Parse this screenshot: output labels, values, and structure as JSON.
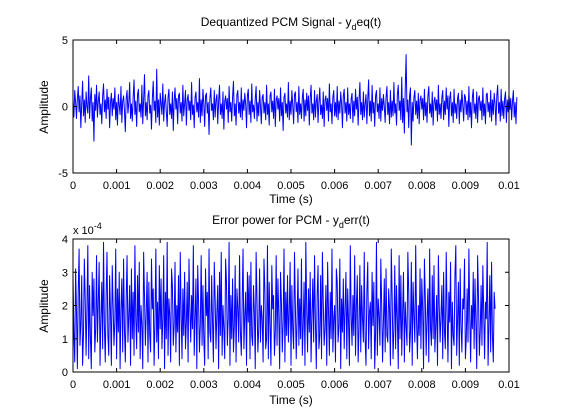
{
  "figure": {
    "background": "#ffffff",
    "axes_color": "#000000",
    "line_color": "#0000ff"
  },
  "chart_data": [
    {
      "type": "line",
      "title_prefix": "Dequantized PCM Signal - y",
      "title_subscript": "d",
      "title_suffix": "eq(t)",
      "xlabel": "Time (s)",
      "ylabel": "Amplitude",
      "xlim": [
        0,
        0.01
      ],
      "ylim": [
        -5,
        5
      ],
      "x_ticks": [
        0,
        0.001,
        0.002,
        0.003,
        0.004,
        0.005,
        0.006,
        0.007,
        0.008,
        0.009,
        0.01
      ],
      "x_tick_labels": [
        "0",
        "0.001",
        "0.002",
        "0.003",
        "0.004",
        "0.005",
        "0.006",
        "0.007",
        "0.008",
        "0.009",
        "0.01"
      ],
      "y_ticks": [
        -5,
        0,
        5
      ],
      "y_tick_labels": [
        "-5",
        "0",
        "5"
      ],
      "grid": false,
      "series": [
        {
          "color": "#0000ff",
          "x_start": 0,
          "x_step": 2e-05,
          "values": [
            0.4,
            -0.8,
            1.2,
            0.3,
            -0.9,
            0.6,
            1.5,
            -0.4,
            0.8,
            -1.6,
            0.2,
            1.9,
            -0.7,
            0.5,
            -1.2,
            1.1,
            0.0,
            -0.5,
            2.3,
            -0.9,
            0.6,
            1.4,
            -1.1,
            0.3,
            -2.6,
            0.9,
            -0.3,
            1.6,
            -0.8,
            0.4,
            1.1,
            -0.6,
            0.2,
            -1.3,
            0.8,
            1.7,
            -0.4,
            0.5,
            -0.9,
            1.3,
            -0.2,
            0.7,
            -1.6,
            0.3,
            1.0,
            -0.7,
            0.6,
            -0.2,
            1.4,
            -1.0,
            0.3,
            -1.4,
            0.9,
            0.1,
            -0.6,
            1.5,
            -1.2,
            0.4,
            0.8,
            -0.3,
            -1.9,
            0.6,
            1.2,
            -0.5,
            0.3,
            1.8,
            -0.9,
            0.2,
            -1.1,
            0.7,
            2.0,
            -0.6,
            0.4,
            -1.5,
            0.9,
            1.3,
            -0.4,
            0.2,
            -0.8,
            1.6,
            -1.3,
            0.5,
            2.4,
            -0.7,
            0.3,
            -1.0,
            0.8,
            1.2,
            -0.5,
            0.1,
            -1.7,
            0.6,
            1.9,
            -0.3,
            0.4,
            -1.2,
            2.8,
            -0.8,
            0.5,
            -1.4,
            1.0,
            0.2,
            -0.6,
            1.7,
            -1.1,
            0.3,
            0.9,
            -0.4,
            -1.5,
            0.7,
            1.3,
            -0.6,
            0.2,
            -0.9,
            1.1,
            -1.8,
            0.4,
            1.4,
            -0.2,
            0.6,
            -1.3,
            0.8,
            1.0,
            -0.5,
            0.3,
            -1.1,
            1.6,
            -0.7,
            0.2,
            1.2,
            -1.4,
            0.5,
            0.9,
            -0.3,
            0.4,
            -1.0,
            1.8,
            -0.6,
            0.1,
            -1.6,
            0.7,
            1.1,
            -0.4,
            0.3,
            -0.8,
            2.1,
            -1.2,
            0.5,
            -0.7,
            1.3,
            0.2,
            -1.5,
            0.8,
            1.0,
            -0.5,
            0.3,
            -2.1,
            0.6,
            1.4,
            -0.3,
            0.2,
            -1.0,
            1.2,
            -0.8,
            0.5,
            0.9,
            -1.3,
            0.4,
            1.6,
            -0.6,
            0.2,
            -0.9,
            1.1,
            -1.7,
            0.4,
            0.8,
            -0.2,
            0.6,
            -1.2,
            1.5,
            -0.4,
            0.3,
            -1.1,
            0.7,
            1.9,
            -0.7,
            0.2,
            -1.4,
            0.9,
            1.2,
            -0.5,
            0.3,
            -0.8,
            1.4,
            -1.0,
            0.5,
            -0.3,
            1.0,
            0.2,
            -1.6,
            0.8,
            1.3,
            -0.6,
            0.4,
            -1.2,
            1.7,
            -0.4,
            0.1,
            -0.9,
            0.6,
            1.5,
            -1.1,
            0.3,
            -0.7,
            1.2,
            0.0,
            -1.3,
            0.7,
            0.9,
            -0.5,
            0.3,
            -1.0,
            1.6,
            -0.6,
            0.2,
            -1.4,
            0.8,
            1.1,
            -0.4,
            0.4,
            -0.9,
            1.3,
            -1.5,
            0.5,
            0.8,
            -0.2,
            0.6,
            -1.1,
            1.4,
            -0.7,
            0.3,
            -1.8,
            0.7,
            1.0,
            -0.5,
            0.2,
            -0.8,
            1.8,
            -1.0,
            0.4,
            -0.6,
            1.2,
            0.1,
            -1.3,
            0.9,
            1.1,
            -0.4,
            0.3,
            -1.2,
            1.5,
            -0.6,
            0.2,
            -0.9,
            0.7,
            1.3,
            -1.1,
            0.5,
            -0.7,
            1.0,
            -0.3,
            0.8,
            -1.4,
            0.6,
            1.6,
            -0.5,
            0.2,
            -1.0,
            1.2,
            -0.8,
            0.4,
            0.9,
            -1.2,
            0.3,
            1.4,
            -0.6,
            0.1,
            -0.9,
            1.1,
            -1.5,
            0.5,
            0.8,
            -0.3,
            0.6,
            -1.1,
            1.7,
            -0.4,
            0.2,
            -1.3,
            0.7,
            1.2,
            -0.7,
            0.3,
            -0.8,
            1.5,
            -1.0,
            0.4,
            -0.5,
            1.1,
            0.2,
            -1.6,
            0.8,
            1.3,
            -0.5,
            0.3,
            -1.1,
            1.4,
            -0.6,
            0.2,
            -0.9,
            0.6,
            1.0,
            -1.2,
            0.4,
            -0.7,
            1.3,
            -0.2,
            0.7,
            -1.4,
            0.5,
            1.8,
            -0.6,
            0.3,
            -1.0,
            1.1,
            -0.8,
            0.2,
            0.9,
            -1.3,
            0.5,
            2.0,
            -0.7,
            0.4,
            -1.1,
            1.6,
            -0.5,
            0.3,
            -1.5,
            0.8,
            1.2,
            -0.4,
            0.2,
            -0.9,
            1.4,
            -1.1,
            0.6,
            -0.3,
            0.9,
            0.0,
            -1.2,
            0.7,
            1.5,
            -0.6,
            0.3,
            -1.3,
            1.2,
            -0.8,
            0.4,
            -0.7,
            1.8,
            -0.5,
            0.2,
            -1.4,
            0.9,
            1.6,
            -0.3,
            0.4,
            -1.0,
            2.2,
            -1.2,
            0.6,
            -2.0,
            1.3,
            3.9,
            -0.4,
            0.5,
            -1.6,
            0.8,
            1.4,
            -2.9,
            0.3,
            -1.1,
            0.7,
            1.2,
            -0.6,
            0.4,
            -0.9,
            1.0,
            -1.3,
            0.5,
            0.8,
            -0.2,
            0.6,
            -1.0,
            1.3,
            -0.7,
            0.3,
            -1.2,
            0.8,
            1.5,
            -0.5,
            0.2,
            -0.8,
            1.1,
            -1.4,
            0.4,
            0.7,
            -0.3,
            0.5,
            -1.1,
            1.6,
            -0.6,
            0.2,
            -0.9,
            0.7,
            1.2,
            -1.0,
            0.4,
            -0.6,
            1.4,
            -0.2,
            0.8,
            -1.5,
            0.6,
            1.1,
            -0.7,
            0.3,
            -1.2,
            1.3,
            -0.5,
            0.2,
            -0.9,
            0.6,
            1.0,
            -1.3,
            0.5,
            -0.4,
            1.2,
            0.1,
            -1.1,
            0.9,
            0.7,
            -0.6,
            0.4,
            -1.0,
            1.5,
            -0.8,
            0.3,
            -1.6,
            0.7,
            1.3,
            -0.5,
            0.2,
            -0.9,
            1.1,
            -1.2,
            0.6,
            0.8,
            -0.3,
            0.4,
            -1.0,
            1.4,
            -0.7,
            0.2,
            -1.3,
            0.9,
            1.0,
            -0.4,
            0.3,
            -0.8,
            1.2,
            -1.1,
            0.5,
            -0.6,
            1.0,
            0.2,
            -1.4,
            0.8,
            1.6,
            -0.5,
            0.3,
            -1.1,
            1.3,
            -0.7,
            0.4,
            -0.9,
            0.6,
            1.1,
            -1.2,
            0.5,
            -0.4,
            0.9,
            -0.2,
            0.6,
            -1.0,
            0.4,
            1.2,
            -0.8,
            0.3,
            -1.3,
            0.7
          ]
        }
      ]
    },
    {
      "type": "line",
      "title_prefix": "Error power for PCM - y",
      "title_subscript": "d",
      "title_suffix": "err(t)",
      "xlabel": "Time (s)",
      "ylabel": "Amplitude",
      "exponent_base": "x 10",
      "exponent_power": "-4",
      "xlim": [
        0,
        0.01
      ],
      "ylim": [
        0,
        4
      ],
      "x_ticks": [
        0,
        0.001,
        0.002,
        0.003,
        0.004,
        0.005,
        0.006,
        0.007,
        0.008,
        0.009,
        0.01
      ],
      "x_tick_labels": [
        "0",
        "0.001",
        "0.002",
        "0.003",
        "0.004",
        "0.005",
        "0.006",
        "0.007",
        "0.008",
        "0.009",
        "0.01"
      ],
      "y_ticks": [
        0,
        1,
        2,
        3,
        4
      ],
      "y_tick_labels": [
        "0",
        "1",
        "2",
        "3",
        "4"
      ],
      "grid": false,
      "series": [
        {
          "color": "#0000ff",
          "x_start": 0,
          "x_step": 2e-05,
          "values": [
            2.9,
            1.2,
            0.3,
            3.1,
            1.8,
            0.1,
            2.4,
            3.7,
            0.8,
            1.5,
            2.9,
            0.2,
            1.1,
            3.4,
            2.2,
            0.5,
            1.9,
            3.8,
            0.4,
            2.6,
            1.0,
            0.1,
            3.0,
            1.7,
            2.8,
            0.6,
            1.3,
            3.5,
            0.9,
            2.1,
            3.3,
            0.2,
            1.6,
            2.7,
            0.7,
            3.9,
            1.4,
            0.3,
            2.3,
            3.6,
            1.1,
            0.5,
            2.9,
            1.8,
            0.2,
            3.2,
            2.0,
            0.8,
            1.5,
            3.7,
            0.4,
            2.5,
            1.2,
            3.0,
            0.1,
            1.9,
            2.8,
            0.6,
            3.4,
            1.3,
            0.3,
            2.2,
            3.5,
            0.9,
            1.7,
            2.6,
            0.2,
            3.1,
            1.0,
            2.4,
            0.5,
            3.8,
            1.6,
            0.7,
            2.9,
            1.2,
            3.3,
            0.4,
            2.0,
            1.4,
            0.1,
            3.6,
            2.3,
            0.8,
            1.8,
            3.0,
            0.3,
            2.7,
            1.1,
            0.6,
            3.4,
            1.9,
            2.5,
            0.2,
            1.5,
            3.7,
            0.9,
            2.1,
            0.4,
            3.2,
            1.3,
            2.8,
            0.7,
            1.6,
            3.5,
            0.1,
            2.4,
            1.0,
            3.9,
            0.5,
            2.2,
            1.7,
            0.3,
            3.1,
            2.6,
            0.8,
            1.4,
            3.3,
            0.6,
            2.0,
            1.2,
            2.9,
            0.2,
            3.6,
            1.8,
            0.4,
            2.5,
            1.1,
            3.0,
            0.7,
            1.5,
            2.7,
            0.3,
            3.4,
            1.9,
            0.9,
            2.3,
            1.3,
            3.8,
            0.5,
            1.6,
            2.8,
            0.1,
            3.2,
            2.1,
            0.6,
            1.4,
            3.5,
            0.8,
            2.6,
            1.0,
            0.2,
            3.1,
            1.7,
            2.4,
            0.4,
            3.7,
            1.2,
            0.9,
            2.9,
            1.5,
            0.3,
            3.3,
            2.2,
            0.7,
            1.8,
            2.6,
            0.1,
            3.0,
            1.1,
            3.6,
            0.5,
            2.0,
            1.3,
            0.4,
            3.4,
            2.7,
            0.8,
            1.6,
            3.9,
            0.2,
            2.3,
            1.0,
            2.8,
            0.6,
            1.4,
            3.2,
            0.3,
            2.5,
            1.9,
            0.9,
            3.5,
            1.2,
            0.5,
            2.1,
            3.7,
            0.7,
            1.7,
            2.4,
            0.2,
            3.0,
            1.5,
            2.9,
            0.4,
            3.3,
            1.1,
            0.8,
            2.6,
            1.8,
            0.1,
            3.6,
            2.2,
            0.6,
            1.3,
            3.1,
            0.9,
            2.0,
            1.6,
            0.3,
            3.4,
            2.5,
            0.7,
            1.0,
            3.8,
            0.4,
            2.7,
            1.4,
            0.2,
            3.2,
            1.9,
            2.3,
            0.5,
            1.2,
            3.5,
            0.8,
            2.8,
            1.7,
            0.1,
            3.0,
            2.1,
            0.6,
            1.5,
            3.7,
            0.3,
            2.4,
            1.1,
            2.9,
            0.9,
            1.8,
            3.3,
            0.2,
            2.6,
            1.3,
            0.7,
            3.6,
            2.0,
            0.4,
            1.6,
            3.1,
            0.8,
            2.2,
            1.0,
            3.4,
            0.5,
            1.4,
            2.7,
            0.2,
            3.9,
            1.9,
            0.6,
            2.5,
            1.2,
            3.0,
            0.3,
            1.7,
            2.8,
            0.9,
            3.5,
            1.5,
            0.1,
            2.3,
            3.2,
            0.7,
            1.1,
            2.9,
            0.4,
            3.6,
            2.1,
            0.8,
            1.3,
            2.6,
            0.2,
            3.3,
            1.8,
            0.5,
            2.4,
            1.0,
            3.7,
            0.6,
            1.6,
            2.0,
            0.3,
            3.1,
            2.7,
            0.9,
            1.4,
            3.4,
            0.1,
            2.2,
            1.2,
            2.8,
            0.7,
            1.9,
            3.0,
            0.4,
            2.5,
            1.5,
            0.2,
            3.8,
            1.7,
            0.8,
            2.3,
            1.1,
            3.5,
            0.5,
            2.0,
            2.9,
            0.3,
            1.3,
            3.2,
            0.6,
            2.6,
            1.6,
            0.9,
            3.6,
            1.0,
            0.2,
            2.4,
            3.3,
            0.7,
            1.8,
            2.1,
            0.4,
            3.0,
            1.4,
            2.7,
            0.1,
            1.2,
            3.9,
            0.5,
            2.2,
            1.7,
            0.8,
            3.4,
            2.0,
            0.3,
            1.5,
            2.8,
            0.6,
            3.1,
            1.1,
            0.9,
            2.5,
            1.9,
            0.2,
            3.7,
            2.3,
            0.4,
            1.3,
            3.2,
            0.7,
            2.6,
            1.6,
            0.1,
            3.5,
            1.0,
            2.9,
            0.5,
            1.8,
            3.0,
            0.3,
            2.1,
            1.4,
            0.8,
            3.6,
            2.4,
            0.6,
            1.2,
            3.3,
            0.2,
            2.7,
            1.7,
            0.9,
            3.8,
            1.5,
            0.4,
            2.0,
            1.1,
            3.1,
            0.7,
            2.8,
            1.9,
            0.1,
            3.4,
            2.2,
            0.5,
            1.6,
            2.5,
            0.3,
            3.7,
            1.3,
            0.8,
            2.9,
            1.0,
            3.2,
            0.6,
            1.4,
            2.3,
            0.2,
            3.5,
            2.0,
            0.9,
            1.7,
            2.6,
            0.4,
            3.0,
            1.2,
            0.7,
            3.6,
            1.8,
            0.3,
            2.4,
            1.5,
            3.3,
            0.1,
            2.1,
            1.1,
            0.8,
            2.9,
            3.8,
            0.5,
            1.6,
            2.7,
            0.2,
            3.1,
            1.4,
            0.6,
            2.2,
            1.9,
            3.4,
            0.4,
            1.0,
            2.5,
            0.9,
            3.7,
            1.7,
            0.3,
            2.0,
            1.3,
            3.0,
            0.7,
            2.8,
            1.5,
            0.1,
            3.5,
            2.3,
            0.5,
            1.2,
            2.6,
            0.8,
            3.2,
            1.8,
            0.4,
            2.1,
            1.6,
            3.9,
            0.2,
            1.4,
            2.9,
            0.6,
            3.3,
            1.1,
            0.3,
            2.4,
            1.9
          ]
        }
      ]
    }
  ]
}
